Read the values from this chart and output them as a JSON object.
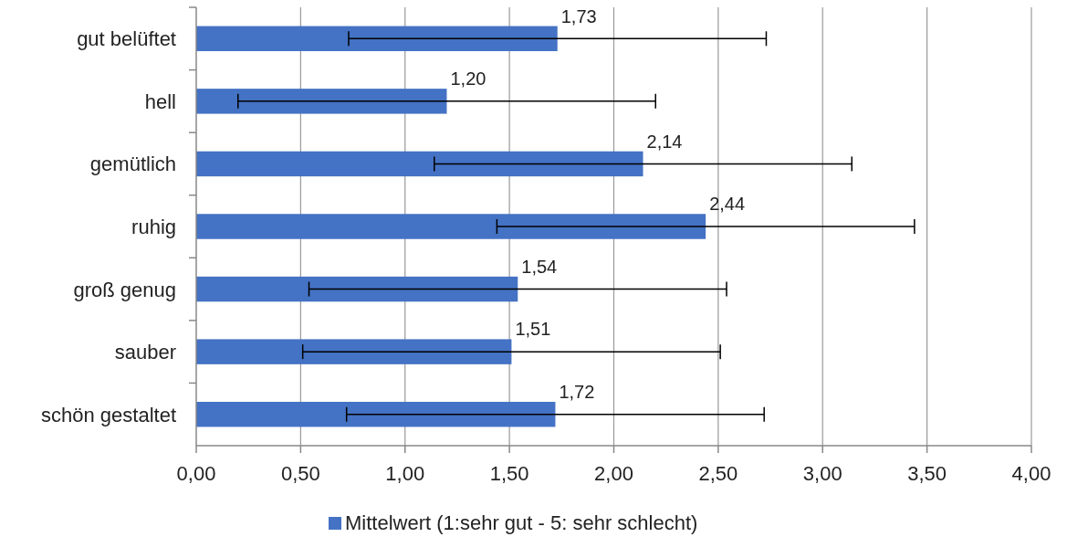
{
  "chart_data": {
    "type": "bar",
    "orientation": "horizontal",
    "categories": [
      "gut belüftet",
      "hell",
      "gemütlich",
      "ruhig",
      "groß genug",
      "sauber",
      "schön gestaltet"
    ],
    "series": [
      {
        "name": "Mittelwert (1:sehr gut - 5: sehr schlecht)",
        "color": "#4472c4",
        "values": [
          1.73,
          1.2,
          2.14,
          2.44,
          1.54,
          1.51,
          1.72
        ],
        "errors": [
          1,
          1,
          1,
          1,
          1,
          1,
          1
        ],
        "value_labels": [
          "1,73",
          "1,20",
          "2,14",
          "2,44",
          "1,54",
          "1,51",
          "1,72"
        ]
      }
    ],
    "xlim": [
      0,
      4
    ],
    "xticks": [
      {
        "value": 0,
        "label": "0,00"
      },
      {
        "value": 0.5,
        "label": "0,50"
      },
      {
        "value": 1,
        "label": "1,00"
      },
      {
        "value": 1.5,
        "label": "1,50"
      },
      {
        "value": 2,
        "label": "2,00"
      },
      {
        "value": 2.5,
        "label": "2,50"
      },
      {
        "value": 3,
        "label": "3,00"
      },
      {
        "value": 3.5,
        "label": "3,50"
      },
      {
        "value": 4,
        "label": "4,00"
      }
    ],
    "grid": "x",
    "legend": "bottom"
  }
}
